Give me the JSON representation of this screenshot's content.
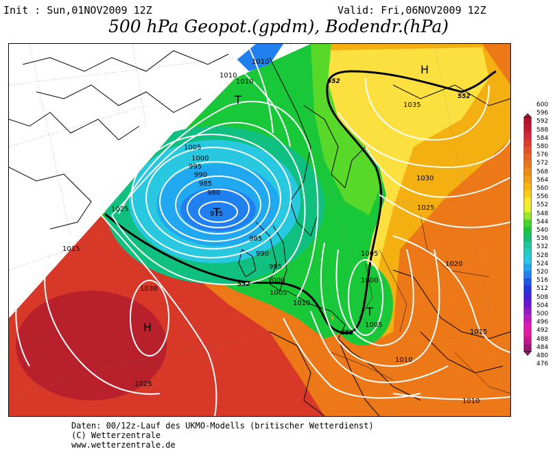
{
  "header": {
    "init": "Init : Sun,01NOV2009 12Z",
    "valid": "Valid: Fri,06NOV2009 12Z",
    "title": "500 hPa Geopot.(gpdm), Bodendr.(hPa)"
  },
  "legend": {
    "levels": [
      "600",
      "596",
      "592",
      "588",
      "584",
      "580",
      "576",
      "572",
      "568",
      "564",
      "560",
      "556",
      "552",
      "548",
      "544",
      "540",
      "536",
      "532",
      "528",
      "524",
      "520",
      "516",
      "512",
      "508",
      "504",
      "500",
      "496",
      "492",
      "488",
      "484",
      "480",
      "476"
    ],
    "colors": [
      "#b4102a",
      "#c41830",
      "#d42838",
      "#e03a2c",
      "#e45028",
      "#e86420",
      "#ec7818",
      "#f08c14",
      "#f4a010",
      "#f8b80c",
      "#fcd010",
      "#fce828",
      "#e4f428",
      "#98e828",
      "#40d828",
      "#18c838",
      "#10c070",
      "#18c8a0",
      "#20d0c8",
      "#28c8e8",
      "#20a8f0",
      "#2080f0",
      "#1c58e8",
      "#2034e0",
      "#4020d8",
      "#6818d0",
      "#9418c8",
      "#c018c0",
      "#e018b8",
      "#e818a0",
      "#c81490",
      "#a01478"
    ]
  },
  "map": {
    "pressure_labels": [
      "1010",
      "1010",
      "1010",
      "1005",
      "1000",
      "995",
      "990",
      "985",
      "980",
      "975",
      "985",
      "990",
      "995",
      "1000",
      "1005",
      "1010",
      "1025",
      "1015",
      "1030",
      "1025",
      "1035",
      "1030",
      "1025",
      "1005",
      "1000",
      "1005",
      "1020",
      "1015",
      "1010",
      "1010"
    ],
    "geopotential_labels": [
      "552",
      "552",
      "552",
      "552"
    ],
    "centers": [
      {
        "label": "H",
        "type": "high"
      },
      {
        "label": "T",
        "type": "low"
      },
      {
        "label": "T",
        "type": "low"
      },
      {
        "label": "T",
        "type": "low"
      },
      {
        "label": "H",
        "type": "high"
      }
    ]
  },
  "footer": {
    "line1": "Daten: 00/12z-Lauf des UKMO-Modells (britischer Wetterdienst)",
    "line2": "(C) Wetterzentrale",
    "line3": "www.wetterzentrale.de"
  }
}
